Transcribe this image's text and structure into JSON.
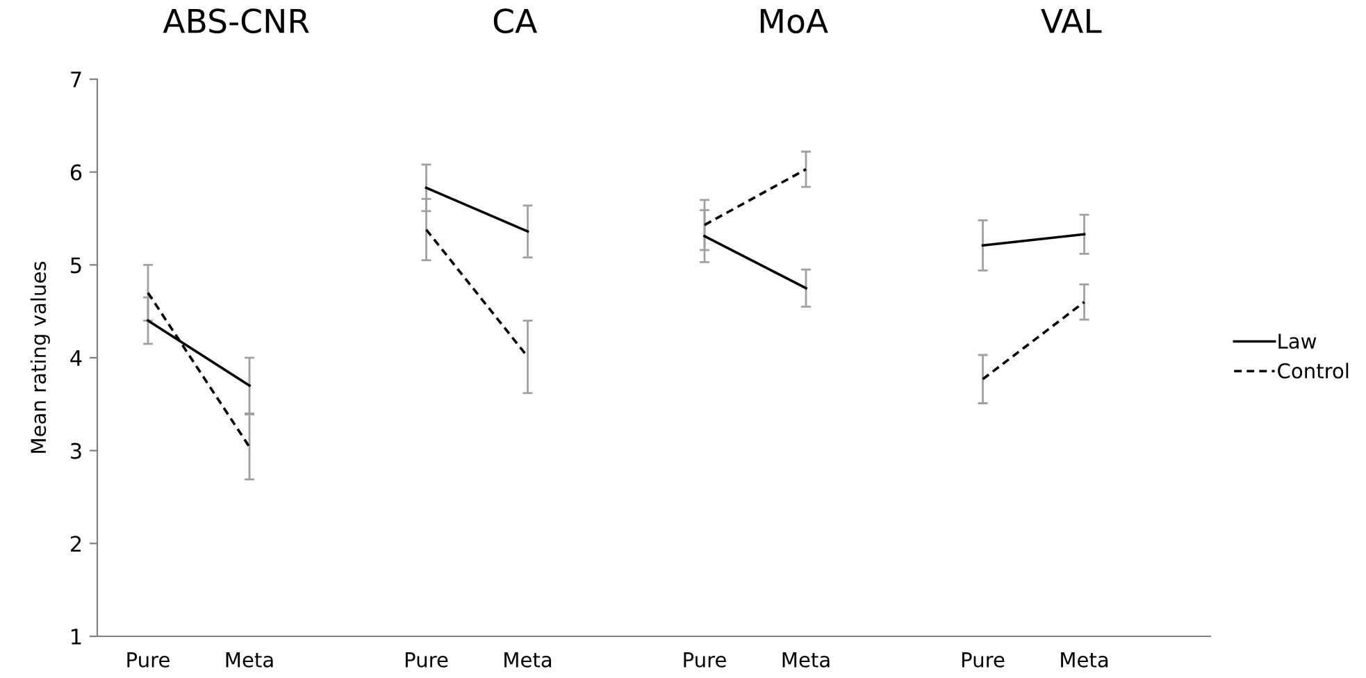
{
  "chart_data": [
    {
      "type": "line",
      "title": "ABS-CNR",
      "ylabel": "Mean rating values",
      "categories": [
        "Pure",
        "Meta"
      ],
      "ylim": [
        1,
        7
      ],
      "yticks": [
        1,
        2,
        3,
        4,
        5,
        6,
        7
      ],
      "grid": false,
      "legend": false,
      "marker": "none",
      "series": [
        {
          "color": "#000000",
          "line_style": "solid",
          "values": [
            4.4,
            3.7
          ],
          "errors": [
            0.25,
            0.3
          ]
        },
        {
          "color": "#000000",
          "line_style": "dashed",
          "values": [
            4.7,
            3.04
          ],
          "errors": [
            0.3,
            0.35
          ]
        }
      ]
    },
    {
      "type": "line",
      "title": "CA",
      "categories": [
        "Pure",
        "Meta"
      ],
      "ylim": [
        1,
        7
      ],
      "yticks": [
        1,
        2,
        3,
        4,
        5,
        6,
        7
      ],
      "tick_labels": "x",
      "grid": false,
      "legend": false,
      "marker": "none",
      "series": [
        {
          "color": "#000000",
          "line_style": "solid",
          "values": [
            5.83,
            5.36
          ],
          "errors": [
            0.25,
            0.28
          ]
        },
        {
          "color": "#000000",
          "line_style": "dashed",
          "values": [
            5.38,
            4.01
          ],
          "errors": [
            0.33,
            0.39
          ]
        }
      ]
    },
    {
      "type": "line",
      "title": "MoA",
      "categories": [
        "Pure",
        "Meta"
      ],
      "ylim": [
        1,
        7
      ],
      "yticks": [
        1,
        2,
        3,
        4,
        5,
        6,
        7
      ],
      "tick_labels": "x",
      "grid": false,
      "legend": false,
      "marker": "none",
      "series": [
        {
          "color": "#000000",
          "line_style": "solid",
          "values": [
            5.31,
            4.75
          ],
          "errors": [
            0.28,
            0.2
          ]
        },
        {
          "color": "#000000",
          "line_style": "dashed",
          "values": [
            5.43,
            6.03
          ],
          "errors": [
            0.27,
            0.19
          ]
        }
      ]
    },
    {
      "type": "line",
      "title": "VAL",
      "categories": [
        "Pure",
        "Meta"
      ],
      "ylim": [
        1,
        7
      ],
      "yticks": [
        1,
        2,
        3,
        4,
        5,
        6,
        7
      ],
      "tick_labels": "x",
      "grid": false,
      "legend": "right",
      "marker": "none",
      "series": [
        {
          "name": "Law",
          "color": "#000000",
          "line_style": "solid",
          "values": [
            5.21,
            5.33
          ],
          "errors": [
            0.27,
            0.21
          ]
        },
        {
          "name": "Control",
          "color": "#000000",
          "line_style": "dashed",
          "values": [
            3.77,
            4.6
          ],
          "errors": [
            0.26,
            0.19
          ]
        }
      ]
    }
  ]
}
